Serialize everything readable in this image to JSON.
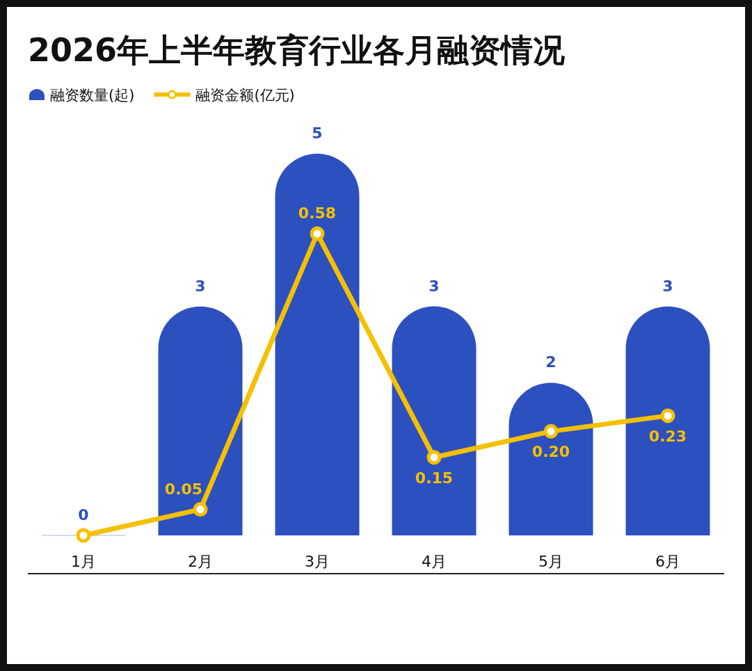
{
  "chart_data": {
    "type": "bar",
    "title": "2026年上半年教育行业各月融资情况",
    "categories": [
      "1月",
      "2月",
      "3月",
      "4月",
      "5月",
      "6月"
    ],
    "series": [
      {
        "name": "融资数量(起)",
        "color": "#2d50bf",
        "values": [
          0,
          3,
          5,
          3,
          2,
          3
        ]
      },
      {
        "name": "融资金额(亿元)",
        "type": "line",
        "axis": "y2",
        "color": "#f5c000",
        "values": [
          0,
          0.05,
          0.58,
          0.15,
          0.2,
          0.23
        ],
        "value_labels": [
          null,
          "0.05",
          "0.58",
          "0.15",
          "0.20",
          "0.23"
        ]
      }
    ],
    "data_labels": true,
    "legend": "top left",
    "marker": "circle",
    "line_style": "solid"
  }
}
